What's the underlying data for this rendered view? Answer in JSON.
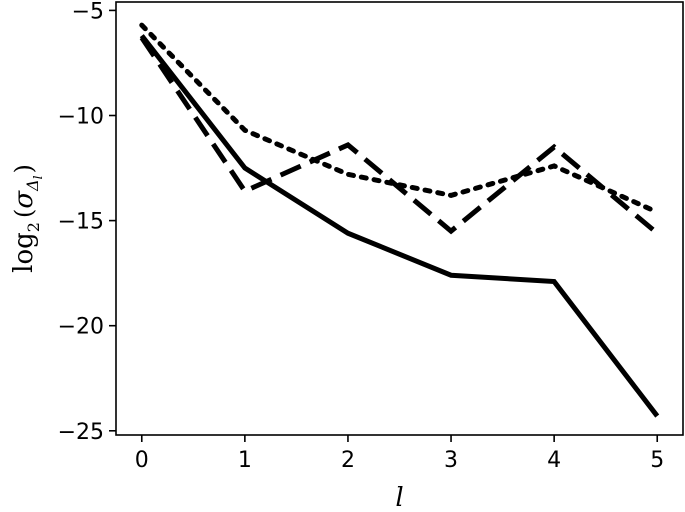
{
  "chart_data": {
    "type": "line",
    "title": "",
    "xlabel": "l",
    "ylabel": "log2(σ_Δl)",
    "ylabel_parts": {
      "base": "log",
      "sub": "2",
      "open": "(",
      "sigma": "σ",
      "delta": "Δ",
      "delta_sub": "l",
      "close": ")"
    },
    "x": [
      0,
      1,
      2,
      3,
      4,
      5
    ],
    "xlim": [
      -0.25,
      5.25
    ],
    "ylim": [
      -25.2,
      -4.6
    ],
    "x_ticks": [
      0,
      1,
      2,
      3,
      4,
      5
    ],
    "x_tick_labels": [
      "0",
      "1",
      "2",
      "3",
      "4",
      "5"
    ],
    "y_ticks": [
      -5,
      -10,
      -15,
      -20,
      -25
    ],
    "y_tick_labels": [
      "−5",
      "−10",
      "−15",
      "−20",
      "−25"
    ],
    "grid": false,
    "series": [
      {
        "style": "solid",
        "color": "#000000",
        "values": [
          -6.2,
          -12.5,
          -15.6,
          -17.6,
          -17.9,
          -24.3
        ]
      },
      {
        "style": "dashed",
        "color": "#000000",
        "values": [
          -6.3,
          -13.6,
          -11.4,
          -15.5,
          -11.5,
          -15.6
        ]
      },
      {
        "style": "dotted",
        "color": "#000000",
        "values": [
          -5.7,
          -10.7,
          -12.8,
          -13.8,
          -12.4,
          -14.6
        ]
      }
    ]
  }
}
